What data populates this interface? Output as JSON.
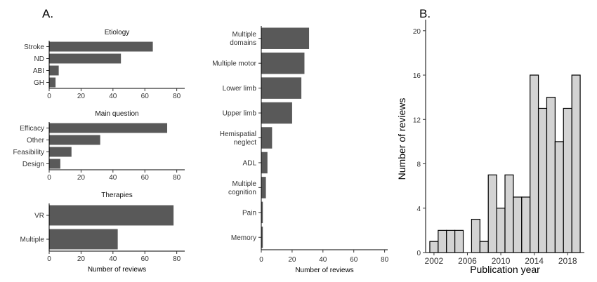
{
  "panel_labels": {
    "a": "A.",
    "b": "B."
  },
  "chart_data": [
    {
      "id": "etiology",
      "type": "bar",
      "orientation": "horizontal",
      "title": "Etiology",
      "categories": [
        "Stroke",
        "ND",
        "ABI",
        "GH"
      ],
      "values": [
        65,
        45,
        6,
        4
      ],
      "xlim": [
        0,
        85
      ],
      "xticks": [
        0,
        20,
        40,
        60,
        80
      ],
      "xlabel": "",
      "bar_color": "#595959"
    },
    {
      "id": "main_question",
      "type": "bar",
      "orientation": "horizontal",
      "title": "Main question",
      "categories": [
        "Efficacy",
        "Other",
        "Feasibility",
        "Design"
      ],
      "values": [
        74,
        32,
        14,
        7
      ],
      "xlim": [
        0,
        85
      ],
      "xticks": [
        0,
        20,
        40,
        60,
        80
      ],
      "xlabel": "",
      "bar_color": "#595959"
    },
    {
      "id": "therapies",
      "type": "bar",
      "orientation": "horizontal",
      "title": "Therapies",
      "categories": [
        "VR",
        "Multiple"
      ],
      "values": [
        78,
        43
      ],
      "xlim": [
        0,
        85
      ],
      "xticks": [
        0,
        20,
        40,
        60,
        80
      ],
      "xlabel": "Number of reviews",
      "bar_color": "#595959"
    },
    {
      "id": "domains",
      "type": "bar",
      "orientation": "horizontal",
      "title": "",
      "categories": [
        "Multiple domains",
        "Multiple motor",
        "Lower limb",
        "Upper limb",
        "Hemispatial neglect",
        "ADL",
        "Multiple cognition",
        "Pain",
        "Memory"
      ],
      "category_lines": [
        [
          "Multiple",
          "domains"
        ],
        [
          "Multiple motor"
        ],
        [
          "Lower limb"
        ],
        [
          "Upper limb"
        ],
        [
          "Hemispatial",
          "neglect"
        ],
        [
          "ADL"
        ],
        [
          "Multiple",
          "cognition"
        ],
        [
          "Pain"
        ],
        [
          "Memory"
        ]
      ],
      "values": [
        31,
        28,
        26,
        20,
        7,
        4,
        3,
        1,
        1
      ],
      "xlim": [
        0,
        82
      ],
      "xticks": [
        0,
        20,
        40,
        60,
        80
      ],
      "xlabel": "Number of reviews",
      "bar_color": "#595959"
    },
    {
      "id": "publication_year",
      "type": "bar",
      "subtype": "histogram",
      "title": "",
      "years": [
        2002,
        2003,
        2004,
        2005,
        2006,
        2007,
        2008,
        2009,
        2010,
        2011,
        2012,
        2013,
        2014,
        2015,
        2016,
        2017,
        2018,
        2019
      ],
      "values": [
        1,
        2,
        2,
        2,
        0,
        3,
        1,
        7,
        4,
        7,
        5,
        5,
        16,
        13,
        14,
        10,
        13,
        16
      ],
      "xticks": [
        2002,
        2006,
        2010,
        2014,
        2018
      ],
      "yticks": [
        0,
        4,
        8,
        12,
        16,
        20
      ],
      "ylim": [
        0,
        21
      ],
      "xlabel": "Publication year",
      "ylabel": "Number of reviews",
      "bar_color": "#d3d3d3",
      "bar_edge_color": "#000000"
    }
  ]
}
